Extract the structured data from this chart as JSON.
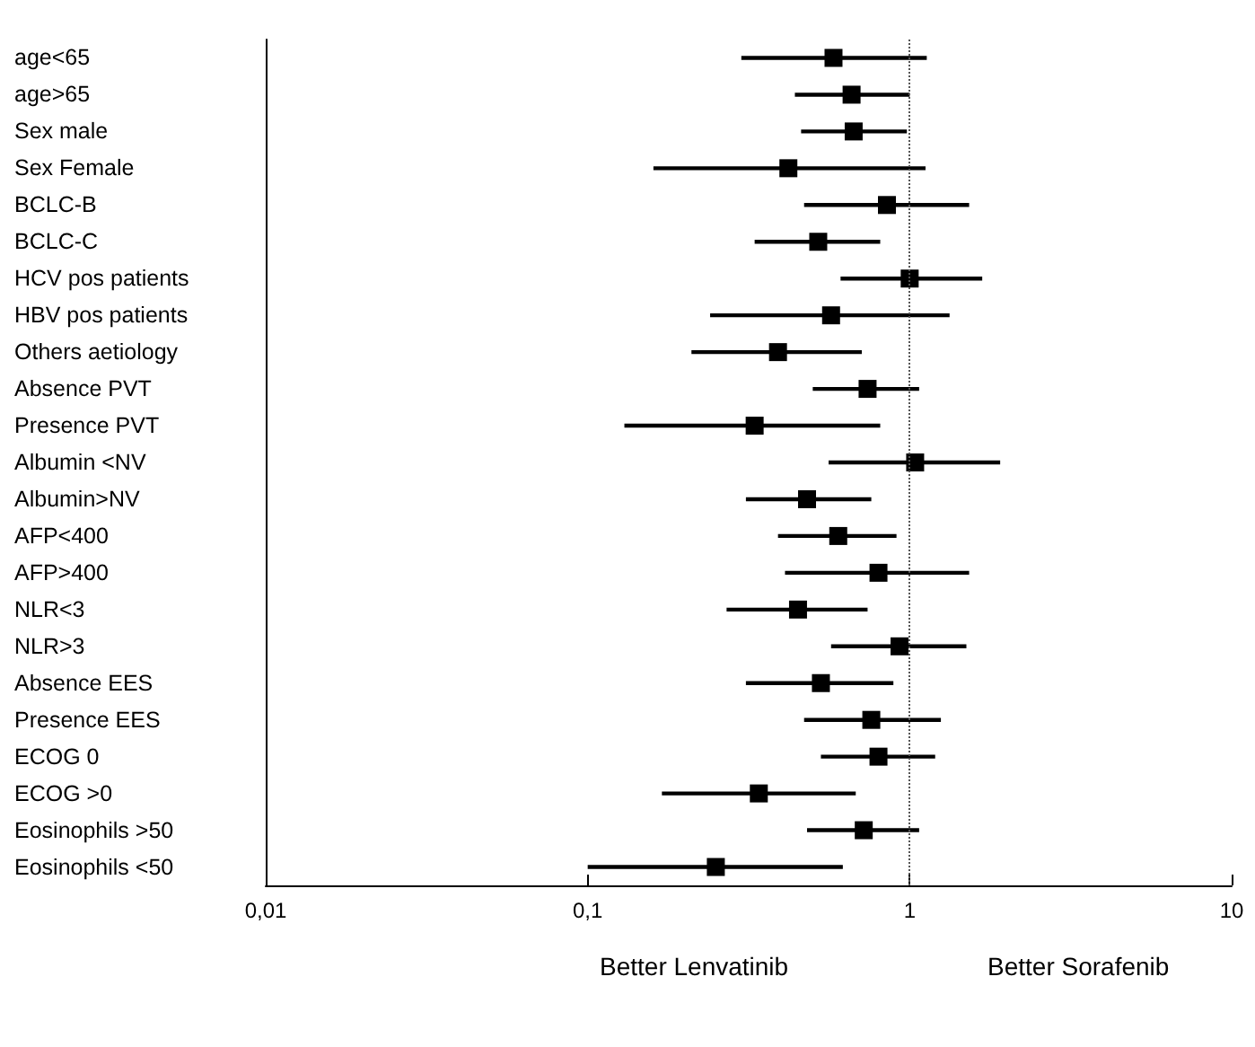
{
  "chart_data": {
    "type": "scatter",
    "orientation": "horizontal",
    "categories": [
      "age<65",
      "age>65",
      "Sex male",
      "Sex Female",
      "BCLC-B",
      "BCLC-C",
      "HCV pos patients",
      "HBV pos patients",
      "Others aetiology",
      "Absence PVT",
      "Presence PVT",
      "Albumin <NV",
      "Albumin>NV",
      "AFP<400",
      "AFP>400",
      "NLR<3",
      "NLR>3",
      "Absence EES",
      "Presence EES",
      "ECOG 0",
      "ECOG >0",
      "Eosinophils >50",
      "Eosinophils <50"
    ],
    "values": [
      0.58,
      0.66,
      0.67,
      0.42,
      0.85,
      0.52,
      1.0,
      0.57,
      0.39,
      0.74,
      0.33,
      1.04,
      0.48,
      0.6,
      0.8,
      0.45,
      0.93,
      0.53,
      0.76,
      0.8,
      0.34,
      0.72,
      0.25
    ],
    "errors": [
      [
        0.3,
        1.13
      ],
      [
        0.44,
        1.0
      ],
      [
        0.46,
        0.98
      ],
      [
        0.16,
        1.12
      ],
      [
        0.47,
        1.53
      ],
      [
        0.33,
        0.81
      ],
      [
        0.61,
        1.68
      ],
      [
        0.24,
        1.33
      ],
      [
        0.21,
        0.71
      ],
      [
        0.5,
        1.07
      ],
      [
        0.13,
        0.81
      ],
      [
        0.56,
        1.91
      ],
      [
        0.31,
        0.76
      ],
      [
        0.39,
        0.91
      ],
      [
        0.41,
        1.53
      ],
      [
        0.27,
        0.74
      ],
      [
        0.57,
        1.5
      ],
      [
        0.31,
        0.89
      ],
      [
        0.47,
        1.25
      ],
      [
        0.53,
        1.2
      ],
      [
        0.17,
        0.68
      ],
      [
        0.48,
        1.07
      ],
      [
        0.1,
        0.62
      ]
    ],
    "color": "#000000",
    "marker": "square",
    "log": "x",
    "xlim": [
      0.01,
      10
    ],
    "xticks": [
      {
        "value": 0.01,
        "label": "0,01"
      },
      {
        "value": 0.1,
        "label": "0,1"
      },
      1,
      10
    ],
    "ref_lines": [
      {
        "axis": "x",
        "value": 1,
        "label": null,
        "color": "#555555",
        "line_style": "dotted"
      }
    ],
    "annotations": [
      "Better Lenvatinib",
      "Better Sorafenib"
    ]
  }
}
